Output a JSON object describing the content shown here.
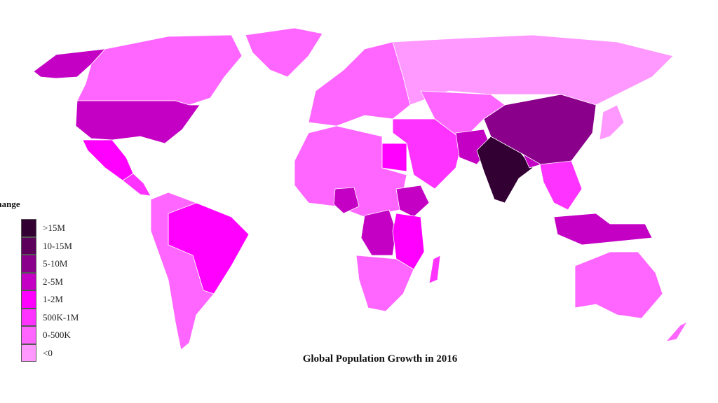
{
  "title": "Global Population Growth in 2016",
  "legend": {
    "title": "Change",
    "items": [
      {
        "label": ">15M",
        "color": "#330033"
      },
      {
        "label": "10-15M",
        "color": "#5c005c"
      },
      {
        "label": "5-10M",
        "color": "#8a008a"
      },
      {
        "label": "2-5M",
        "color": "#c400c4"
      },
      {
        "label": "1-2M",
        "color": "#ff00ff"
      },
      {
        "label": "500K-1M",
        "color": "#ff33ff"
      },
      {
        "label": "0-500K",
        "color": "#ff66ff"
      },
      {
        "label": "<0",
        "color": "#ff99ff"
      }
    ]
  },
  "regions": [
    {
      "name": "Alaska",
      "class": "2-5M"
    },
    {
      "name": "Canada",
      "class": "0-500K"
    },
    {
      "name": "Greenland",
      "class": "0-500K"
    },
    {
      "name": "United States",
      "class": "2-5M"
    },
    {
      "name": "Mexico",
      "class": "1-2M"
    },
    {
      "name": "Central America",
      "class": "500K-1M"
    },
    {
      "name": "Brazil",
      "class": "1-2M"
    },
    {
      "name": "South America",
      "class": "0-500K"
    },
    {
      "name": "Europe",
      "class": "0-500K"
    },
    {
      "name": "Russia",
      "class": "<0"
    },
    {
      "name": "North Africa",
      "class": "0-500K"
    },
    {
      "name": "Egypt",
      "class": "1-2M"
    },
    {
      "name": "Nigeria",
      "class": "2-5M"
    },
    {
      "name": "Ethiopia",
      "class": "2-5M"
    },
    {
      "name": "DR Congo",
      "class": "2-5M"
    },
    {
      "name": "East Africa",
      "class": "1-2M"
    },
    {
      "name": "Southern Africa",
      "class": "0-500K"
    },
    {
      "name": "Madagascar",
      "class": "500K-1M"
    },
    {
      "name": "Middle East",
      "class": "500K-1M"
    },
    {
      "name": "Central Asia",
      "class": "0-500K"
    },
    {
      "name": "Pakistan",
      "class": "2-5M"
    },
    {
      "name": "India",
      "class": ">15M"
    },
    {
      "name": "Bangladesh",
      "class": "2-5M"
    },
    {
      "name": "China",
      "class": "5-10M"
    },
    {
      "name": "Southeast Asia",
      "class": "500K-1M"
    },
    {
      "name": "Indonesia",
      "class": "2-5M"
    },
    {
      "name": "Japan",
      "class": "<0"
    },
    {
      "name": "Australia",
      "class": "0-500K"
    },
    {
      "name": "New Zealand",
      "class": "0-500K"
    }
  ]
}
